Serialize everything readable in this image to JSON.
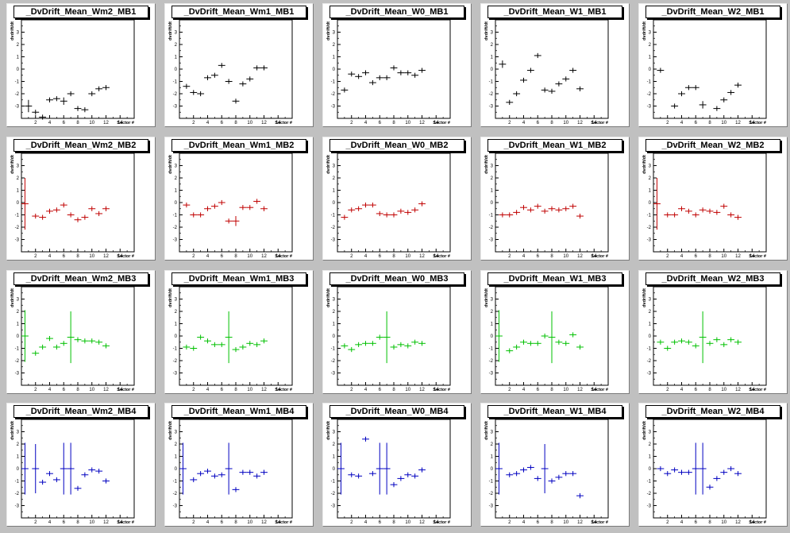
{
  "axes": {
    "ylabel": "dvdrift/dt",
    "xlabel": "Sector #",
    "xlim": [
      0,
      16
    ],
    "ylim": [
      -4,
      4
    ],
    "xticks": [
      2,
      4,
      6,
      8,
      10,
      12,
      14
    ],
    "yticks": [
      -3,
      -2,
      -1,
      0,
      1,
      2,
      3
    ]
  },
  "colors": {
    "MB1": "#000000",
    "MB2": "#c00000",
    "MB3": "#00c000",
    "MB4": "#0000c0"
  },
  "chart_data": [
    {
      "type": "scatter",
      "title": "_DvDrift_Mean_Wm2_MB1",
      "station": "MB1",
      "points": [
        [
          1,
          -3.0,
          0.5
        ],
        [
          2,
          -3.5,
          0
        ],
        [
          3,
          -3.9,
          0
        ],
        [
          4,
          -2.5,
          0
        ],
        [
          5,
          -2.4,
          0
        ],
        [
          6,
          -2.6,
          0.3
        ],
        [
          7,
          -2.0,
          0
        ],
        [
          8,
          -3.2,
          0
        ],
        [
          9,
          -3.3,
          0
        ],
        [
          10,
          -2.0,
          0
        ],
        [
          11,
          -1.6,
          0
        ],
        [
          12,
          -1.5,
          0
        ]
      ]
    },
    {
      "type": "scatter",
      "title": "_DvDrift_Mean_Wm1_MB1",
      "station": "MB1",
      "points": [
        [
          1,
          -1.4,
          0
        ],
        [
          2,
          -1.9,
          0
        ],
        [
          3,
          -2.0,
          0
        ],
        [
          4,
          -0.7,
          0
        ],
        [
          5,
          -0.5,
          0
        ],
        [
          6,
          0.3,
          0
        ],
        [
          7,
          -1.0,
          0
        ],
        [
          8,
          -2.6,
          0
        ],
        [
          9,
          -1.2,
          0
        ],
        [
          10,
          -0.8,
          0
        ],
        [
          11,
          0.1,
          0
        ],
        [
          12,
          0.1,
          0
        ]
      ]
    },
    {
      "type": "scatter",
      "title": "_DvDrift_Mean_W0_MB1",
      "station": "MB1",
      "points": [
        [
          1,
          -1.7,
          0
        ],
        [
          2,
          -0.4,
          0
        ],
        [
          3,
          -0.6,
          0
        ],
        [
          4,
          -0.3,
          0
        ],
        [
          5,
          -1.1,
          0
        ],
        [
          6,
          -0.7,
          0
        ],
        [
          7,
          -0.7,
          0
        ],
        [
          8,
          0.1,
          0
        ],
        [
          9,
          -0.3,
          0
        ],
        [
          10,
          -0.3,
          0
        ],
        [
          11,
          -0.5,
          0
        ],
        [
          12,
          -0.1,
          0
        ]
      ]
    },
    {
      "type": "scatter",
      "title": "_DvDrift_Mean_W1_MB1",
      "station": "MB1",
      "points": [
        [
          1,
          0.4,
          0.3
        ],
        [
          2,
          -2.7,
          0
        ],
        [
          3,
          -2.0,
          0
        ],
        [
          4,
          -0.9,
          0
        ],
        [
          5,
          -0.1,
          0
        ],
        [
          6,
          1.1,
          0
        ],
        [
          7,
          -1.7,
          0
        ],
        [
          8,
          -1.8,
          0
        ],
        [
          9,
          -1.2,
          0
        ],
        [
          10,
          -0.8,
          0
        ],
        [
          11,
          -0.1,
          0
        ],
        [
          12,
          -1.6,
          0
        ]
      ]
    },
    {
      "type": "scatter",
      "title": "_DvDrift_Mean_W2_MB1",
      "station": "MB1",
      "points": [
        [
          1,
          -0.1,
          0
        ],
        [
          3,
          -3.0,
          0
        ],
        [
          4,
          -2.0,
          0
        ],
        [
          5,
          -1.5,
          0
        ],
        [
          6,
          -1.5,
          0
        ],
        [
          7,
          -2.9,
          0.3
        ],
        [
          9,
          -3.2,
          0
        ],
        [
          10,
          -2.5,
          0
        ],
        [
          11,
          -1.9,
          0
        ],
        [
          12,
          -1.3,
          0
        ]
      ]
    },
    {
      "type": "scatter",
      "title": "_DvDrift_Mean_Wm2_MB2",
      "station": "MB2",
      "points": [
        [
          0.5,
          -0.1,
          2.1
        ],
        [
          2,
          -1.1,
          0
        ],
        [
          3,
          -1.2,
          0
        ],
        [
          4,
          -0.7,
          0
        ],
        [
          5,
          -0.6,
          0
        ],
        [
          6,
          -0.2,
          0
        ],
        [
          7,
          -1.0,
          0
        ],
        [
          8,
          -1.4,
          0
        ],
        [
          9,
          -1.2,
          0
        ],
        [
          10,
          -0.5,
          0
        ],
        [
          11,
          -0.9,
          0
        ],
        [
          12,
          -0.5,
          0
        ]
      ]
    },
    {
      "type": "scatter",
      "title": "_DvDrift_Mean_Wm1_MB2",
      "station": "MB2",
      "points": [
        [
          1,
          -0.2,
          0
        ],
        [
          2,
          -1.0,
          0
        ],
        [
          3,
          -1.0,
          0
        ],
        [
          4,
          -0.5,
          0
        ],
        [
          5,
          -0.3,
          0
        ],
        [
          6,
          0.0,
          0
        ],
        [
          7,
          -1.5,
          0
        ],
        [
          8,
          -1.5,
          0.4
        ],
        [
          9,
          -0.4,
          0
        ],
        [
          10,
          -0.4,
          0
        ],
        [
          11,
          0.1,
          0
        ],
        [
          12,
          -0.5,
          0
        ]
      ]
    },
    {
      "type": "scatter",
      "title": "_DvDrift_Mean_W0_MB2",
      "station": "MB2",
      "points": [
        [
          1,
          -1.2,
          0
        ],
        [
          2,
          -0.6,
          0
        ],
        [
          3,
          -0.5,
          0
        ],
        [
          4,
          -0.2,
          0
        ],
        [
          5,
          -0.2,
          0
        ],
        [
          6,
          -0.9,
          0
        ],
        [
          7,
          -1.0,
          0
        ],
        [
          8,
          -1.0,
          0
        ],
        [
          9,
          -0.7,
          0
        ],
        [
          10,
          -0.8,
          0
        ],
        [
          11,
          -0.6,
          0
        ],
        [
          12,
          -0.1,
          0
        ]
      ]
    },
    {
      "type": "scatter",
      "title": "_DvDrift_Mean_W1_MB2",
      "station": "MB2",
      "points": [
        [
          1,
          -1.0,
          0
        ],
        [
          2,
          -1.0,
          0
        ],
        [
          3,
          -0.8,
          0
        ],
        [
          4,
          -0.4,
          0
        ],
        [
          5,
          -0.6,
          0
        ],
        [
          6,
          -0.3,
          0
        ],
        [
          7,
          -0.7,
          0
        ],
        [
          8,
          -0.5,
          0
        ],
        [
          9,
          -0.6,
          0
        ],
        [
          10,
          -0.5,
          0
        ],
        [
          11,
          -0.3,
          0
        ],
        [
          12,
          -1.1,
          0
        ]
      ]
    },
    {
      "type": "scatter",
      "title": "_DvDrift_Mean_W2_MB2",
      "station": "MB2",
      "points": [
        [
          0.5,
          -0.1,
          2.1
        ],
        [
          2,
          -1.0,
          0
        ],
        [
          3,
          -1.0,
          0
        ],
        [
          4,
          -0.5,
          0
        ],
        [
          5,
          -0.7,
          0
        ],
        [
          6,
          -1.0,
          0
        ],
        [
          7,
          -0.6,
          0
        ],
        [
          8,
          -0.7,
          0
        ],
        [
          9,
          -0.8,
          0
        ],
        [
          10,
          -0.3,
          0
        ],
        [
          11,
          -1.0,
          0
        ],
        [
          12,
          -1.2,
          0
        ]
      ]
    },
    {
      "type": "scatter",
      "title": "_DvDrift_Mean_Wm2_MB3",
      "station": "MB3",
      "points": [
        [
          0.5,
          0.0,
          2.1
        ],
        [
          2,
          -1.4,
          0
        ],
        [
          3,
          -0.9,
          0
        ],
        [
          4,
          -0.2,
          0
        ],
        [
          5,
          -0.9,
          0
        ],
        [
          6,
          -0.6,
          0
        ],
        [
          7,
          -0.1,
          2.1
        ],
        [
          8,
          -0.3,
          0
        ],
        [
          9,
          -0.4,
          0
        ],
        [
          10,
          -0.4,
          0
        ],
        [
          11,
          -0.5,
          0
        ],
        [
          12,
          -0.8,
          0
        ]
      ]
    },
    {
      "type": "scatter",
      "title": "_DvDrift_Mean_Wm1_MB3",
      "station": "MB3",
      "points": [
        [
          1,
          -0.9,
          0
        ],
        [
          2,
          -1.0,
          0
        ],
        [
          3,
          -0.1,
          0
        ],
        [
          4,
          -0.4,
          0
        ],
        [
          5,
          -0.7,
          0
        ],
        [
          6,
          -0.7,
          0
        ],
        [
          7,
          -0.1,
          2.1
        ],
        [
          8,
          -1.1,
          0
        ],
        [
          9,
          -0.9,
          0
        ],
        [
          10,
          -0.6,
          0
        ],
        [
          11,
          -0.7,
          0
        ],
        [
          12,
          -0.4,
          0
        ]
      ]
    },
    {
      "type": "scatter",
      "title": "_DvDrift_Mean_W0_MB3",
      "station": "MB3",
      "points": [
        [
          1,
          -0.8,
          0
        ],
        [
          2,
          -1.1,
          0
        ],
        [
          3,
          -0.7,
          0
        ],
        [
          4,
          -0.6,
          0
        ],
        [
          5,
          -0.6,
          0
        ],
        [
          6,
          -0.1,
          0
        ],
        [
          7,
          -0.1,
          2.1
        ],
        [
          8,
          -0.9,
          0
        ],
        [
          9,
          -0.7,
          0
        ],
        [
          10,
          -0.8,
          0
        ],
        [
          11,
          -0.5,
          0
        ],
        [
          12,
          -0.6,
          0
        ]
      ]
    },
    {
      "type": "scatter",
      "title": "_DvDrift_Mean_W1_MB3",
      "station": "MB3",
      "points": [
        [
          0.5,
          0.0,
          2.1
        ],
        [
          2,
          -1.2,
          0
        ],
        [
          3,
          -0.9,
          0
        ],
        [
          4,
          -0.5,
          0
        ],
        [
          5,
          -0.6,
          0
        ],
        [
          6,
          -0.6,
          0
        ],
        [
          7,
          0.0,
          0
        ],
        [
          8,
          -0.1,
          2.1
        ],
        [
          9,
          -0.5,
          0
        ],
        [
          10,
          -0.6,
          0
        ],
        [
          11,
          0.1,
          0
        ],
        [
          12,
          -0.9,
          0
        ]
      ]
    },
    {
      "type": "scatter",
      "title": "_DvDrift_Mean_W2_MB3",
      "station": "MB3",
      "points": [
        [
          1,
          -0.5,
          0
        ],
        [
          2,
          -1.0,
          0
        ],
        [
          3,
          -0.5,
          0
        ],
        [
          4,
          -0.4,
          0
        ],
        [
          5,
          -0.5,
          0
        ],
        [
          6,
          -0.8,
          0
        ],
        [
          7,
          -0.1,
          2.1
        ],
        [
          8,
          -0.6,
          0
        ],
        [
          9,
          -0.3,
          0
        ],
        [
          10,
          -0.7,
          0
        ],
        [
          11,
          -0.3,
          0
        ],
        [
          12,
          -0.5,
          0
        ]
      ]
    },
    {
      "type": "scatter",
      "title": "_DvDrift_Mean_Wm2_MB4",
      "station": "MB4",
      "points": [
        [
          0.5,
          0.0,
          2.1
        ],
        [
          2,
          0.0,
          2.0
        ],
        [
          3,
          -1.1,
          0
        ],
        [
          4,
          -0.4,
          0
        ],
        [
          5,
          -0.9,
          0
        ],
        [
          6,
          0.0,
          2.1
        ],
        [
          7,
          0.0,
          2.1
        ],
        [
          8,
          -1.6,
          0
        ],
        [
          9,
          -0.5,
          0
        ],
        [
          10,
          -0.1,
          0
        ],
        [
          11,
          -0.2,
          0
        ],
        [
          12,
          -1.0,
          0
        ]
      ]
    },
    {
      "type": "scatter",
      "title": "_DvDrift_Mean_Wm1_MB4",
      "station": "MB4",
      "points": [
        [
          0.5,
          0.0,
          2.1
        ],
        [
          2,
          -0.9,
          0
        ],
        [
          3,
          -0.4,
          0
        ],
        [
          4,
          -0.2,
          0
        ],
        [
          5,
          -0.6,
          0
        ],
        [
          6,
          -0.5,
          0
        ],
        [
          7,
          0.0,
          2.1
        ],
        [
          8,
          -1.7,
          0
        ],
        [
          9,
          -0.3,
          0
        ],
        [
          10,
          -0.3,
          0
        ],
        [
          11,
          -0.6,
          0
        ],
        [
          12,
          -0.3,
          0
        ]
      ]
    },
    {
      "type": "scatter",
      "title": "_DvDrift_Mean_W0_MB4",
      "station": "MB4",
      "points": [
        [
          0.5,
          0.0,
          2.1
        ],
        [
          2,
          -0.5,
          0
        ],
        [
          3,
          -0.6,
          0
        ],
        [
          4,
          2.4,
          0
        ],
        [
          5,
          -0.4,
          0
        ],
        [
          6,
          0.0,
          2.1
        ],
        [
          7,
          0.0,
          2.1
        ],
        [
          8,
          -1.3,
          0
        ],
        [
          9,
          -0.8,
          0
        ],
        [
          10,
          -0.5,
          0
        ],
        [
          11,
          -0.6,
          0
        ],
        [
          12,
          -0.1,
          0
        ]
      ]
    },
    {
      "type": "scatter",
      "title": "_DvDrift_Mean_W1_MB4",
      "station": "MB4",
      "points": [
        [
          0.5,
          0.0,
          2.1
        ],
        [
          2,
          -0.5,
          0
        ],
        [
          3,
          -0.4,
          0
        ],
        [
          4,
          -0.1,
          0
        ],
        [
          5,
          0.1,
          0
        ],
        [
          6,
          -0.8,
          0
        ],
        [
          7,
          0.0,
          2.0
        ],
        [
          8,
          -1.0,
          0
        ],
        [
          9,
          -0.7,
          0
        ],
        [
          10,
          -0.4,
          0
        ],
        [
          11,
          -0.4,
          0
        ],
        [
          12,
          -2.2,
          0
        ]
      ]
    },
    {
      "type": "scatter",
      "title": "_DvDrift_Mean_W2_MB4",
      "station": "MB4",
      "points": [
        [
          1,
          0.0,
          0
        ],
        [
          2,
          -0.4,
          0
        ],
        [
          3,
          -0.1,
          0
        ],
        [
          4,
          -0.3,
          0
        ],
        [
          5,
          -0.3,
          0
        ],
        [
          6,
          0.0,
          2.1
        ],
        [
          7,
          0.0,
          2.1
        ],
        [
          8,
          -1.5,
          0
        ],
        [
          9,
          -0.8,
          0
        ],
        [
          10,
          -0.3,
          0
        ],
        [
          11,
          0.0,
          0
        ],
        [
          12,
          -0.4,
          0
        ]
      ]
    }
  ]
}
